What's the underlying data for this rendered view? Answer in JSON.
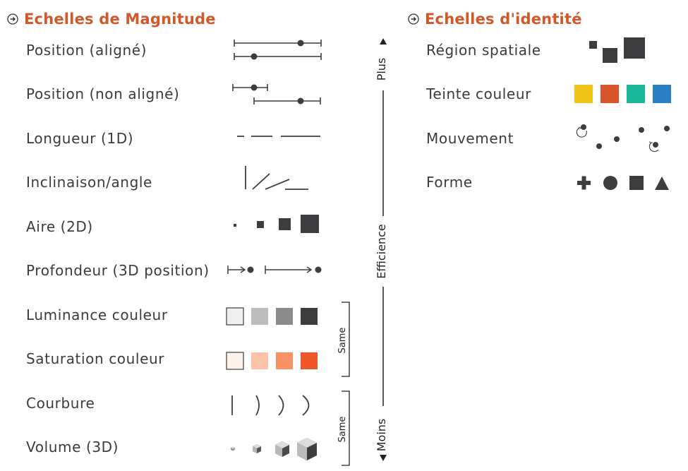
{
  "magnitude": {
    "title": "Echelles de Magnitude",
    "rows": [
      {
        "label": "Position (aligné)"
      },
      {
        "label": "Position (non aligné)"
      },
      {
        "label": "Longueur (1D)"
      },
      {
        "label": "Inclinaison/angle"
      },
      {
        "label": "Aire (2D)"
      },
      {
        "label": "Profondeur (3D position)"
      },
      {
        "label": "Luminance couleur",
        "colors": [
          "#eef0ee",
          "#bdbebe",
          "#8b8b8d",
          "#3d3d3f"
        ]
      },
      {
        "label": "Saturation couleur",
        "colors": [
          "#fdf1ea",
          "#fcc3a6",
          "#f89166",
          "#ef562a"
        ]
      },
      {
        "label": "Courbure"
      },
      {
        "label": "Volume (3D)"
      }
    ]
  },
  "identity": {
    "title": "Echelles d'identité",
    "rows": [
      {
        "label": "Région spatiale"
      },
      {
        "label": "Teinte couleur",
        "colors": [
          "#f0c419",
          "#d9542b",
          "#1cb79a",
          "#2a7fc2"
        ]
      },
      {
        "label": "Mouvement"
      },
      {
        "label": "Forme"
      }
    ]
  },
  "axis": {
    "more": "Plus",
    "efficiency": "Efficience",
    "less": "Moins"
  },
  "brackets": {
    "same_color": "Same",
    "same_shape": "Same"
  },
  "colors": {
    "accent": "#d2582a",
    "mark": "#3d3d3f"
  }
}
